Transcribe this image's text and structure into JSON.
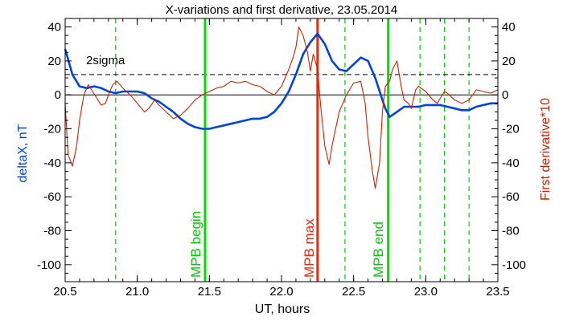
{
  "chart_data": {
    "type": "line",
    "title": "X-variations and first derivative, 23.05.2014",
    "xlabel": "UT, hours",
    "ylabel_left": "deltaX, nT",
    "ylabel_right": "First derivative*10",
    "xlim": [
      20.5,
      23.5
    ],
    "ylim": [
      -110,
      45
    ],
    "ylim_right": [
      -110,
      45
    ],
    "x_ticks": [
      20.5,
      21.0,
      21.5,
      22.0,
      22.5,
      23.0,
      23.5
    ],
    "x_tick_labels": [
      "20.5",
      "21.0",
      "21.5",
      "22.0",
      "22.5",
      "23.0",
      "23.5"
    ],
    "y_ticks": [
      40,
      20,
      0,
      -20,
      -40,
      -60,
      -80,
      -100
    ],
    "y_tick_labels": [
      "40",
      "20",
      "0",
      "-20",
      "-40",
      "-60",
      "-80",
      "-100"
    ],
    "grid": false,
    "colors": {
      "deltaX": "#0044dd",
      "derivative": "#cc2200",
      "mpb_max": "#ff2200",
      "mpb_edges": "#00dd00",
      "dashed_green": "#00cc00",
      "frame": "#000000"
    },
    "sigma_level": 12,
    "sigma_label": "2sigma",
    "zero_line": 0,
    "series": [
      {
        "key": "deltaX",
        "axis": "left",
        "x": [
          20.5,
          20.55,
          20.6,
          20.65,
          20.7,
          20.75,
          20.8,
          20.85,
          20.9,
          20.95,
          21.0,
          21.05,
          21.1,
          21.15,
          21.2,
          21.25,
          21.3,
          21.35,
          21.4,
          21.45,
          21.5,
          21.55,
          21.6,
          21.65,
          21.7,
          21.75,
          21.8,
          21.85,
          21.9,
          21.95,
          22.0,
          22.05,
          22.1,
          22.15,
          22.2,
          22.25,
          22.3,
          22.35,
          22.4,
          22.45,
          22.5,
          22.55,
          22.6,
          22.65,
          22.7,
          22.72,
          22.75,
          22.8,
          22.85,
          22.9,
          22.95,
          23.0,
          23.05,
          23.1,
          23.15,
          23.2,
          23.25,
          23.3,
          23.35,
          23.4,
          23.45,
          23.5
        ],
        "y": [
          27,
          12,
          5,
          4,
          5,
          4,
          2,
          1,
          2,
          2,
          2,
          1,
          -2,
          -4,
          -7,
          -10,
          -14,
          -17,
          -19,
          -20,
          -20,
          -19,
          -18,
          -17,
          -16,
          -15,
          -14,
          -14,
          -13,
          -10,
          -5,
          2,
          12,
          24,
          31,
          36,
          30,
          20,
          15,
          14,
          18,
          22,
          20,
          10,
          -3,
          -8,
          -13,
          -10,
          -7,
          -7,
          -7,
          -6,
          -6,
          -6,
          -7,
          -8,
          -9,
          -9,
          -7,
          -6,
          -5,
          -5
        ]
      },
      {
        "key": "derivative",
        "axis": "right",
        "x": [
          20.5,
          20.52,
          20.55,
          20.58,
          20.6,
          20.63,
          20.66,
          20.69,
          20.72,
          20.75,
          20.78,
          20.8,
          20.83,
          20.86,
          20.9,
          20.95,
          21.0,
          21.05,
          21.08,
          21.12,
          21.15,
          21.2,
          21.25,
          21.3,
          21.35,
          21.4,
          21.45,
          21.5,
          21.55,
          21.6,
          21.65,
          21.7,
          21.75,
          21.8,
          21.85,
          21.9,
          21.95,
          22.0,
          22.05,
          22.08,
          22.1,
          22.12,
          22.15,
          22.18,
          22.2,
          22.22,
          22.25,
          22.27,
          22.3,
          22.33,
          22.35,
          22.4,
          22.45,
          22.5,
          22.55,
          22.58,
          22.6,
          22.63,
          22.65,
          22.68,
          22.7,
          22.72,
          22.75,
          22.77,
          22.8,
          22.83,
          22.85,
          22.88,
          22.9,
          22.93,
          22.95,
          23.0,
          23.05,
          23.08,
          23.1,
          23.13,
          23.15,
          23.2,
          23.25,
          23.3,
          23.35,
          23.4,
          23.45,
          23.5
        ],
        "y": [
          -5,
          -35,
          -42,
          -30,
          -15,
          0,
          6,
          2,
          -2,
          -6,
          -5,
          0,
          6,
          8,
          4,
          0,
          -5,
          -10,
          -8,
          -3,
          -6,
          -10,
          -14,
          -12,
          -8,
          -3,
          0,
          2,
          4,
          5,
          8,
          7,
          8,
          6,
          5,
          2,
          0,
          5,
          15,
          22,
          28,
          40,
          35,
          25,
          14,
          24,
          15,
          -5,
          -30,
          -41,
          -30,
          -10,
          0,
          7,
          8,
          -5,
          -25,
          -45,
          -55,
          -40,
          -10,
          5,
          8,
          15,
          20,
          5,
          -3,
          -5,
          -8,
          3,
          5,
          2,
          -3,
          -5,
          -2,
          2,
          1,
          -3,
          -5,
          -3,
          3,
          2,
          1,
          3
        ]
      }
    ],
    "markers": [
      {
        "x": 21.47,
        "label": "MPB begin",
        "style": "solid-green"
      },
      {
        "x": 22.25,
        "label": "MPB max",
        "style": "solid-red"
      },
      {
        "x": 22.74,
        "label": "MPB end",
        "style": "solid-green"
      }
    ],
    "dashed_lines": [
      20.85,
      22.44,
      22.96,
      23.13,
      23.3
    ]
  }
}
